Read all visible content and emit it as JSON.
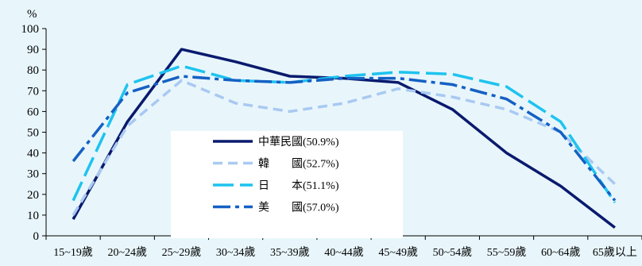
{
  "chart_data": {
    "type": "line",
    "title": "",
    "xlabel": "",
    "ylabel": "%",
    "ylim": [
      0,
      100
    ],
    "yticks": [
      0,
      10,
      20,
      30,
      40,
      50,
      60,
      70,
      80,
      90,
      100
    ],
    "grid": false,
    "legend_position": "center-left",
    "categories": [
      "15~19歲",
      "20~24歲",
      "25~29歲",
      "30~34歲",
      "35~39歲",
      "40~44歲",
      "45~49歲",
      "50~54歲",
      "55~59歲",
      "60~64歲",
      "65歲以上"
    ],
    "series": [
      {
        "name": "中華民國(50.9%)",
        "color": "#0a1a6e",
        "dash": "solid",
        "values": [
          8,
          55,
          90,
          84,
          77,
          76,
          74,
          61,
          40,
          24,
          4
        ]
      },
      {
        "name": "韓　　國(52.7%)",
        "color": "#a9c9f2",
        "dash": "dash",
        "values": [
          10,
          53,
          75,
          64,
          60,
          64,
          71,
          67,
          61,
          50,
          25
        ]
      },
      {
        "name": "日　　本(51.1%)",
        "color": "#1ec3ef",
        "dash": "longdash",
        "values": [
          17,
          73,
          82,
          75,
          74,
          77,
          79,
          78,
          72,
          55,
          16
        ]
      },
      {
        "name": "美　　國(57.0%)",
        "color": "#1560c4",
        "dash": "dashdot",
        "values": [
          36,
          69,
          77,
          75,
          74,
          76,
          76,
          73,
          66,
          50,
          17
        ]
      }
    ]
  }
}
